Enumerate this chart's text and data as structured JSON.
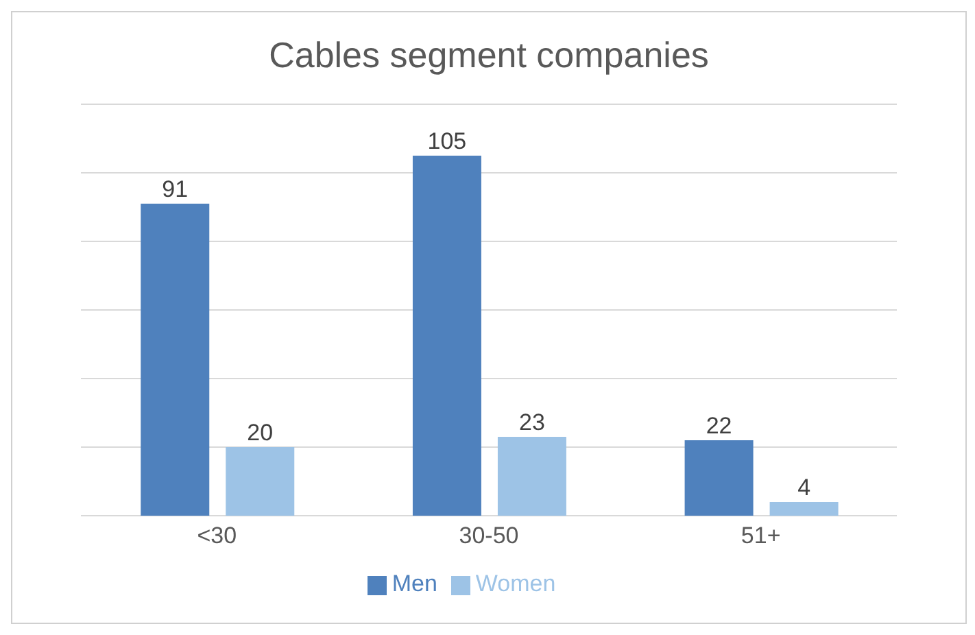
{
  "chart_data": {
    "type": "bar",
    "title": "Cables segment companies",
    "categories": [
      "<30",
      "30-50",
      "51+"
    ],
    "series": [
      {
        "name": "Men",
        "color": "#4f81bd",
        "values": [
          91,
          105,
          22
        ]
      },
      {
        "name": "Women",
        "color": "#9dc3e6",
        "values": [
          20,
          23,
          4
        ]
      }
    ],
    "tick_labels": "x",
    "grid": "y",
    "legend": "bottom",
    "data_labels": true
  }
}
